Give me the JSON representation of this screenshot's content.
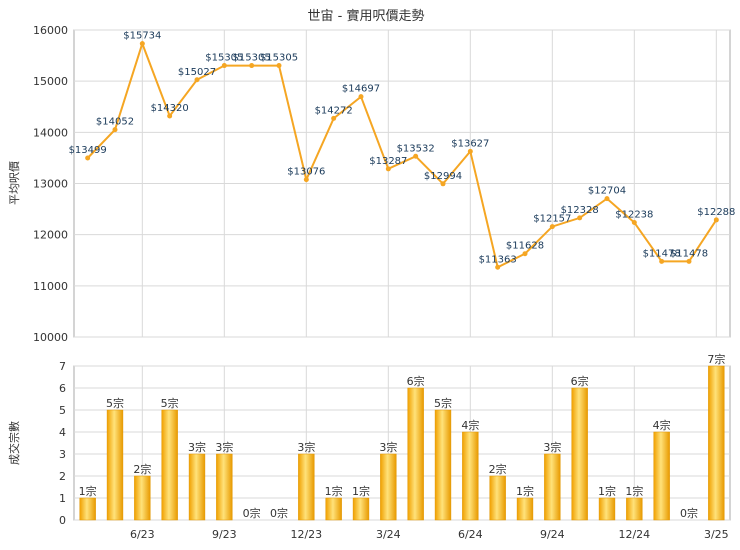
{
  "chart_data": [
    {
      "type": "line",
      "title": "世宙 - 實用呎價走勢",
      "ylabel": "平均呎價",
      "ylim": [
        10000,
        16000
      ],
      "yticks": [
        "10000",
        "11000",
        "12000",
        "13000",
        "14000",
        "15000",
        "16000"
      ],
      "grid": true,
      "color": "#f5a623",
      "values": [
        13499,
        14052,
        15734,
        14320,
        15027,
        15305,
        15305,
        15305,
        13076,
        14272,
        14697,
        13287,
        13532,
        12994,
        13627,
        11363,
        11628,
        12157,
        12328,
        12704,
        12238,
        11478,
        11478,
        12288
      ],
      "value_labels": [
        "$13499",
        "$14052",
        "$15734",
        "$14320",
        "$15027",
        "$15305",
        "$15305",
        "$15305",
        "$13076",
        "$14272",
        "$14697",
        "$13287",
        "$13532",
        "$12994",
        "$13627",
        "$11363",
        "$11628",
        "$12157",
        "$12328",
        "$12704",
        "$12238",
        "$11478",
        "$11478",
        "$12288"
      ],
      "show_labels": [
        true,
        true,
        true,
        true,
        true,
        true,
        true,
        true,
        true,
        true,
        true,
        true,
        true,
        true,
        true,
        true,
        true,
        true,
        true,
        true,
        true,
        true,
        true,
        true
      ]
    },
    {
      "type": "bar",
      "ylabel": "成交宗數",
      "ylim": [
        0,
        7
      ],
      "yticks": [
        "0",
        "1",
        "2",
        "3",
        "4",
        "5",
        "6",
        "7"
      ],
      "grid": true,
      "color": "#f5a623",
      "values": [
        1,
        5,
        2,
        5,
        3,
        3,
        0,
        0,
        3,
        1,
        1,
        3,
        6,
        5,
        4,
        2,
        1,
        3,
        6,
        1,
        1,
        4,
        0,
        7
      ],
      "value_labels": [
        "1宗",
        "5宗",
        "2宗",
        "5宗",
        "3宗",
        "3宗",
        "0宗",
        "0宗",
        "3宗",
        "1宗",
        "1宗",
        "3宗",
        "6宗",
        "5宗",
        "4宗",
        "2宗",
        "1宗",
        "3宗",
        "6宗",
        "1宗",
        "1宗",
        "4宗",
        "0宗",
        "7宗"
      ]
    }
  ],
  "x_ticks": [
    {
      "label": "6/23",
      "index": 2
    },
    {
      "label": "9/23",
      "index": 5
    },
    {
      "label": "12/23",
      "index": 8
    },
    {
      "label": "3/24",
      "index": 11
    },
    {
      "label": "6/24",
      "index": 14
    },
    {
      "label": "9/24",
      "index": 17
    },
    {
      "label": "12/24",
      "index": 20
    },
    {
      "label": "3/25",
      "index": 23
    }
  ]
}
